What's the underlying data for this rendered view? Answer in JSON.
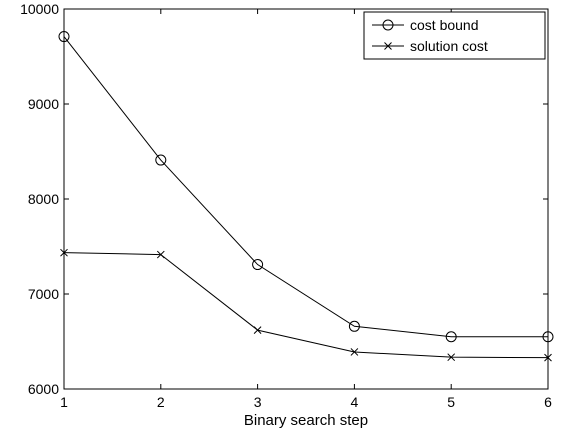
{
  "chart_data": {
    "type": "line",
    "title": "",
    "xlabel": "Binary search step",
    "ylabel": "",
    "x": [
      1,
      2,
      3,
      4,
      5,
      6
    ],
    "xlim": [
      1,
      6
    ],
    "ylim": [
      6000,
      10000
    ],
    "xticks": [
      1,
      2,
      3,
      4,
      5,
      6
    ],
    "yticks": [
      6000,
      7000,
      8000,
      9000,
      10000
    ],
    "grid": false,
    "legend_position": "top-right",
    "series": [
      {
        "name": "cost bound",
        "marker": "circle",
        "color": "#000000",
        "values": [
          9710,
          8410,
          7310,
          6660,
          6550,
          6550
        ]
      },
      {
        "name": "solution cost",
        "marker": "x",
        "color": "#000000",
        "values": [
          7435,
          7415,
          6620,
          6390,
          6335,
          6330
        ]
      }
    ]
  }
}
